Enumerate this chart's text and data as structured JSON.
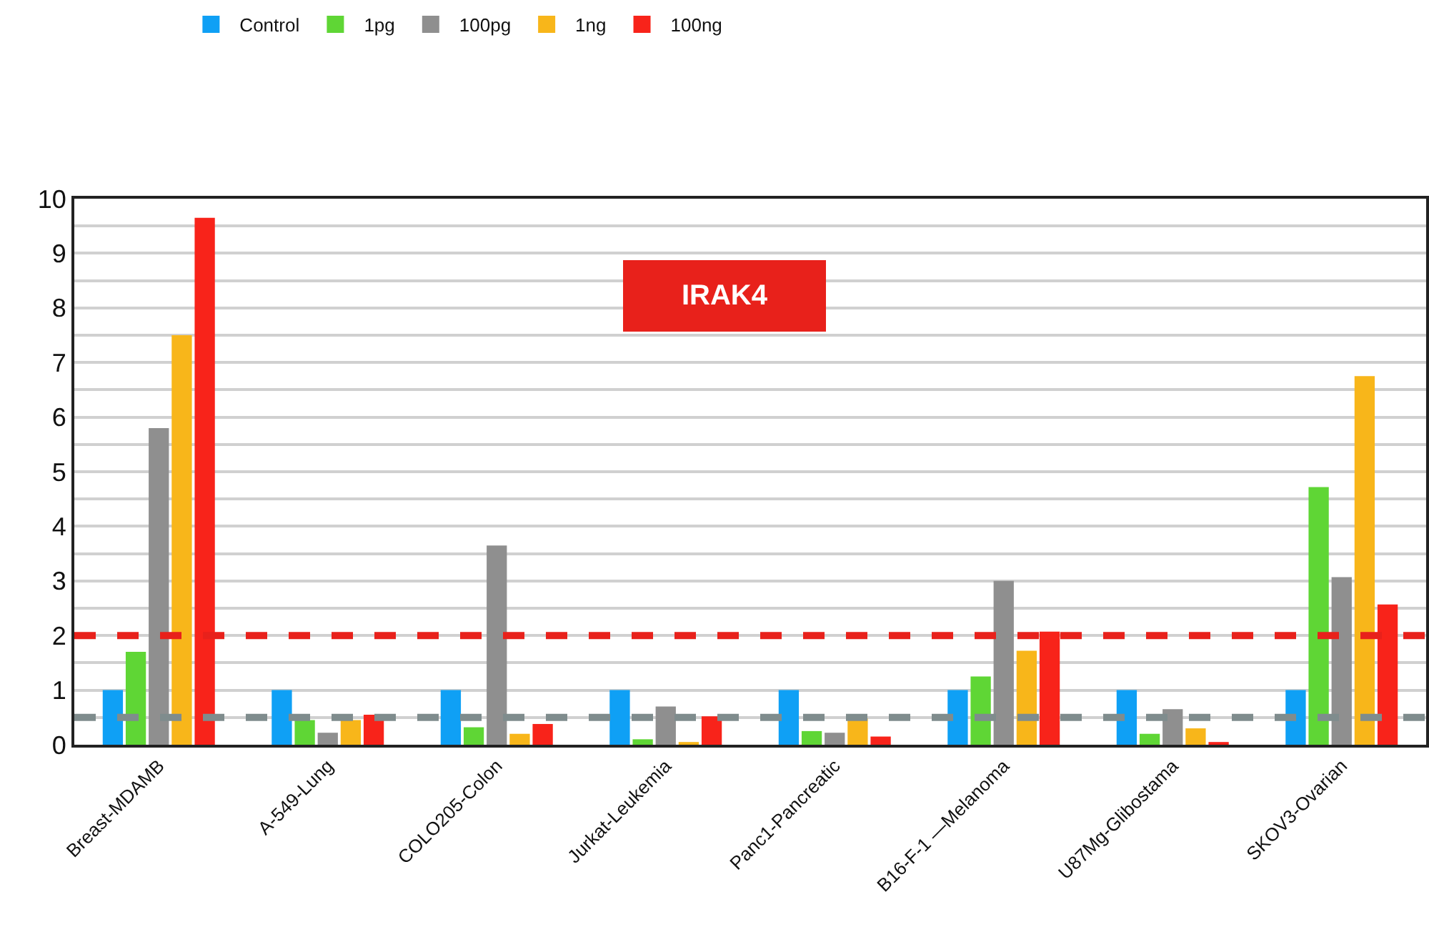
{
  "chart_data": {
    "type": "bar",
    "categories": [
      "Breast-MDAMB",
      "A-549-Lung",
      "COLO205-Colon",
      "Jurkat-Leukemia",
      "Panc1-Pancreatic",
      "B16-F-1 —Melanoma",
      "U87Mg-Glibostama",
      "SKOV3-Ovarian"
    ],
    "series": [
      {
        "name": "Control",
        "color": "#0fa0f5",
        "values": [
          1,
          1,
          1,
          1,
          1,
          1,
          1,
          1
        ]
      },
      {
        "name": "1pg",
        "color": "#5fd635",
        "values": [
          1.7,
          0.45,
          0.32,
          0.1,
          0.25,
          1.25,
          0.2,
          4.72
        ]
      },
      {
        "name": "100pg",
        "color": "#8f8f8f",
        "values": [
          5.8,
          0.22,
          3.65,
          0.7,
          0.22,
          3.0,
          0.65,
          3.07
        ]
      },
      {
        "name": "1ng",
        "color": "#f8b61a",
        "values": [
          7.5,
          0.45,
          0.2,
          0.05,
          0.48,
          1.72,
          0.3,
          6.75
        ]
      },
      {
        "name": "100ng",
        "color": "#f8231a",
        "values": [
          9.65,
          0.55,
          0.38,
          0.52,
          0.15,
          2.07,
          0.05,
          2.57
        ]
      }
    ],
    "ylim": [
      0,
      10
    ],
    "yticks": [
      0,
      {
        "value": 0.5,
        "label": null
      },
      1,
      {
        "value": 1.5,
        "label": null
      },
      2,
      {
        "value": 2.5,
        "label": null
      },
      3,
      {
        "value": 3.5,
        "label": null
      },
      4,
      {
        "value": 4.5,
        "label": null
      },
      5,
      {
        "value": 5.5,
        "label": null
      },
      6,
      {
        "value": 6.5,
        "label": null
      },
      7,
      {
        "value": 7.5,
        "label": null
      },
      8,
      {
        "value": 8.5,
        "label": null
      },
      9,
      {
        "value": 9.5,
        "label": null
      },
      10
    ],
    "ref_lines": [
      {
        "axis": "y",
        "value": 2,
        "color": "#e8211b",
        "line_style": "dashed"
      },
      {
        "axis": "y",
        "value": 0.5,
        "color": "#7f8c8d",
        "line_style": "dashed"
      }
    ],
    "annotations": [
      "IRAK4"
    ],
    "grid": "y",
    "legend": "top"
  }
}
